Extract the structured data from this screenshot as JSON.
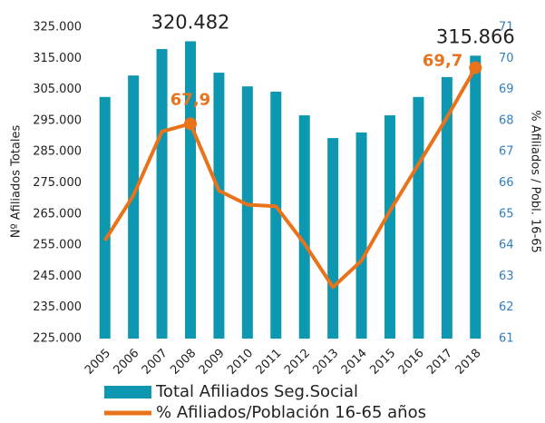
{
  "chart_data": {
    "type": "bar",
    "categories": [
      "2005",
      "2006",
      "2007",
      "2008",
      "2009",
      "2010",
      "2011",
      "2012",
      "2013",
      "2014",
      "2015",
      "2016",
      "2017",
      "2018"
    ],
    "ylabel": "Nº Afiliados Totales",
    "y2label": "% Afiliados / Pobl. 16-65",
    "ylim": [
      225000,
      325000
    ],
    "yticks": [
      {
        "value": 225000,
        "label": "225.000"
      },
      {
        "value": 235000,
        "label": "235.000"
      },
      {
        "value": 245000,
        "label": "245.000"
      },
      {
        "value": 255000,
        "label": "255.000"
      },
      {
        "value": 265000,
        "label": "265.000"
      },
      {
        "value": 275000,
        "label": "275.000"
      },
      {
        "value": 285000,
        "label": "285.000"
      },
      {
        "value": 295000,
        "label": "295.000"
      },
      {
        "value": 305000,
        "label": "305.000"
      },
      {
        "value": 315000,
        "label": "315.000"
      },
      {
        "value": 325000,
        "label": "325.000"
      }
    ],
    "y2lim": [
      61,
      71
    ],
    "y2ticks": [
      61,
      62,
      63,
      64,
      65,
      66,
      67,
      68,
      69,
      70,
      71
    ],
    "series": [
      {
        "name": "Total Afiliados Seg.Social",
        "type": "bar",
        "color": "#0e97b0",
        "values": [
          302600,
          309500,
          318000,
          320482,
          310400,
          306000,
          304300,
          296700,
          289400,
          291200,
          296700,
          302600,
          309000,
          315866
        ],
        "value_labels": [
          null,
          null,
          null,
          "320.482",
          null,
          null,
          null,
          null,
          null,
          null,
          null,
          null,
          null,
          "315.866"
        ]
      },
      {
        "name": "% Afiliados/Población 16-65 años",
        "type": "line",
        "axis": "y2",
        "color": "#e8731a",
        "values": [
          64.15,
          65.6,
          67.65,
          67.9,
          65.75,
          65.3,
          65.25,
          64.05,
          62.65,
          63.5,
          65.1,
          66.6,
          68.1,
          69.7
        ],
        "value_labels": [
          null,
          null,
          null,
          "67,9",
          null,
          null,
          null,
          null,
          null,
          null,
          null,
          null,
          null,
          "69,7"
        ]
      }
    ]
  }
}
